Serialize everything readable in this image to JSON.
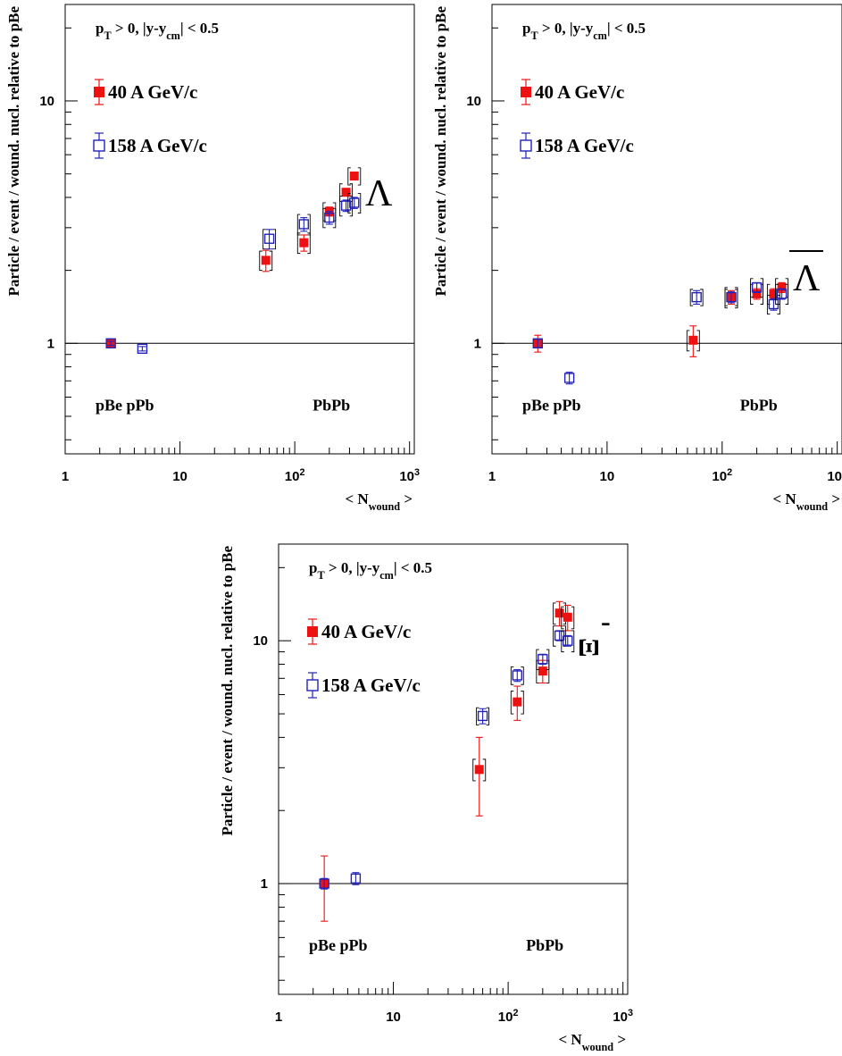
{
  "colors": {
    "series_40": "#ee1111",
    "series_158": "#2222bb",
    "axis": "#000000",
    "refline": "#000000"
  },
  "chart_data": [
    {
      "type": "scatter",
      "name": "lambda-panel",
      "xscale": "log",
      "yscale": "log",
      "xlim": [
        1,
        1100
      ],
      "ylim": [
        0.35,
        25
      ],
      "xticks": [
        {
          "v": 1,
          "label": "1"
        },
        {
          "v": 10,
          "label": "10"
        },
        {
          "v": 100,
          "base": "10",
          "exp": "2"
        },
        {
          "v": 1000,
          "base": "10",
          "exp": "3"
        }
      ],
      "yticks": [
        {
          "v": 1,
          "label": "1"
        },
        {
          "v": 10,
          "label": "10"
        }
      ],
      "xlabel": {
        "main": "< N",
        "sub": "wound",
        "end": " >"
      },
      "ylabel": "Particle / event / wound. nucl. relative to pBe",
      "condition": {
        "a": "p",
        "a_sub": "T",
        "b": " > 0,   |y-y",
        "b_sub": "cm",
        "c": "| < 0.5"
      },
      "particle": "Λ",
      "particle_bar": false,
      "system_labels": {
        "small": "pBe pPb",
        "large": "PbPb"
      },
      "reference_line": 1,
      "series": [
        {
          "name": "40 A GeV/c",
          "marker": "filled-square",
          "color": "#ee1111",
          "points": [
            {
              "x": 2.5,
              "y": 1.0,
              "err": 0.02,
              "sys": 0
            },
            {
              "x": 56,
              "y": 2.2,
              "err": 0.22,
              "sys": 0.2
            },
            {
              "x": 120,
              "y": 2.6,
              "err": 0.2,
              "sys": 0.25
            },
            {
              "x": 200,
              "y": 3.5,
              "err": 0.15,
              "sys": 0.3
            },
            {
              "x": 280,
              "y": 4.2,
              "err": 0.15,
              "sys": 0.35
            },
            {
              "x": 330,
              "y": 4.9,
              "err": 0.15,
              "sys": 0.4
            }
          ]
        },
        {
          "name": "158 A GeV/c",
          "marker": "open-square",
          "color": "#2222bb",
          "points": [
            {
              "x": 2.5,
              "y": 1.0,
              "err": 0.02,
              "sys": 0
            },
            {
              "x": 4.7,
              "y": 0.95,
              "err": 0.02,
              "sys": 0
            },
            {
              "x": 60,
              "y": 2.7,
              "err": 0.25,
              "sys": 0.25
            },
            {
              "x": 120,
              "y": 3.1,
              "err": 0.2,
              "sys": 0.3
            },
            {
              "x": 200,
              "y": 3.3,
              "err": 0.2,
              "sys": 0.3
            },
            {
              "x": 280,
              "y": 3.7,
              "err": 0.2,
              "sys": 0.35
            },
            {
              "x": 330,
              "y": 3.8,
              "err": 0.2,
              "sys": 0.35
            }
          ]
        }
      ],
      "legend": [
        {
          "label": "40 A GeV/c",
          "marker": "filled-square",
          "color": "#ee1111"
        },
        {
          "label": "158 A GeV/c",
          "marker": "open-square",
          "color": "#2222bb"
        }
      ]
    },
    {
      "type": "scatter",
      "name": "antilambda-panel",
      "xscale": "log",
      "yscale": "log",
      "xlim": [
        1,
        1100
      ],
      "ylim": [
        0.35,
        25
      ],
      "xticks": [
        {
          "v": 1,
          "label": "1"
        },
        {
          "v": 10,
          "label": "10"
        },
        {
          "v": 100,
          "base": "10",
          "exp": "2"
        },
        {
          "v": 1000,
          "base": "10",
          "exp": "3"
        }
      ],
      "yticks": [
        {
          "v": 1,
          "label": "1"
        },
        {
          "v": 10,
          "label": "10"
        }
      ],
      "xlabel": {
        "main": "< N",
        "sub": "wound",
        "end": " >"
      },
      "ylabel": "Particle / event / wound. nucl. relative to pBe",
      "condition": {
        "a": "p",
        "a_sub": "T",
        "b": " > 0,   |y-y",
        "b_sub": "cm",
        "c": "| < 0.5"
      },
      "particle": "Λ",
      "particle_bar": true,
      "system_labels": {
        "small": "pBe pPb",
        "large": "PbPb"
      },
      "reference_line": 1,
      "series": [
        {
          "name": "40 A GeV/c",
          "marker": "filled-square",
          "color": "#ee1111",
          "points": [
            {
              "x": 2.5,
              "y": 1.0,
              "err": 0.08,
              "sys": 0
            },
            {
              "x": 56,
              "y": 1.03,
              "err": 0.15,
              "sys": 0.1
            },
            {
              "x": 120,
              "y": 1.55,
              "err": 0.1,
              "sys": 0.15
            },
            {
              "x": 200,
              "y": 1.6,
              "err": 0.08,
              "sys": 0.15
            },
            {
              "x": 280,
              "y": 1.6,
              "err": 0.08,
              "sys": 0.15
            },
            {
              "x": 330,
              "y": 1.7,
              "err": 0.08,
              "sys": 0.15
            }
          ]
        },
        {
          "name": "158 A GeV/c",
          "marker": "open-square",
          "color": "#2222bb",
          "points": [
            {
              "x": 2.5,
              "y": 1.0,
              "err": 0.04,
              "sys": 0
            },
            {
              "x": 4.7,
              "y": 0.72,
              "err": 0.04,
              "sys": 0
            },
            {
              "x": 60,
              "y": 1.55,
              "err": 0.1,
              "sys": 0.12
            },
            {
              "x": 120,
              "y": 1.55,
              "err": 0.08,
              "sys": 0.12
            },
            {
              "x": 200,
              "y": 1.7,
              "err": 0.08,
              "sys": 0.15
            },
            {
              "x": 280,
              "y": 1.45,
              "err": 0.08,
              "sys": 0.13
            },
            {
              "x": 330,
              "y": 1.6,
              "err": 0.08,
              "sys": 0.15
            }
          ]
        }
      ],
      "legend": [
        {
          "label": "40 A GeV/c",
          "marker": "filled-square",
          "color": "#ee1111"
        },
        {
          "label": "158 A GeV/c",
          "marker": "open-square",
          "color": "#2222bb"
        }
      ]
    },
    {
      "type": "scatter",
      "name": "xi-panel",
      "xscale": "log",
      "yscale": "log",
      "xlim": [
        1,
        1100
      ],
      "ylim": [
        0.35,
        25
      ],
      "xticks": [
        {
          "v": 1,
          "label": "1"
        },
        {
          "v": 10,
          "label": "10"
        },
        {
          "v": 100,
          "base": "10",
          "exp": "2"
        },
        {
          "v": 1000,
          "base": "10",
          "exp": "3"
        }
      ],
      "yticks": [
        {
          "v": 1,
          "label": "1"
        },
        {
          "v": 10,
          "label": "10"
        }
      ],
      "xlabel": {
        "main": "< N",
        "sub": "wound",
        "end": " >"
      },
      "ylabel": "Particle / event / wound. nucl. relative to pBe",
      "condition": {
        "a": "p",
        "a_sub": "T",
        "b": " > 0,   |y-y",
        "b_sub": "cm",
        "c": "| < 0.5"
      },
      "particle": "Ξ",
      "particle_sup": "-",
      "particle_bar": false,
      "system_labels": {
        "small": "pBe pPb",
        "large": "PbPb"
      },
      "reference_line": 1,
      "series": [
        {
          "name": "40 A GeV/c",
          "marker": "filled-square",
          "color": "#ee1111",
          "points": [
            {
              "x": 2.5,
              "y": 1.0,
              "err": 0.3,
              "sys": 0
            },
            {
              "x": 56,
              "y": 2.95,
              "err": 1.05,
              "sys": 0.3
            },
            {
              "x": 120,
              "y": 5.6,
              "err": 0.9,
              "sys": 0.6
            },
            {
              "x": 200,
              "y": 7.5,
              "err": 0.8,
              "sys": 0.8
            },
            {
              "x": 280,
              "y": 13.0,
              "err": 1.5,
              "sys": 1.3
            },
            {
              "x": 330,
              "y": 12.5,
              "err": 1.5,
              "sys": 1.3
            }
          ]
        },
        {
          "name": "158 A GeV/c",
          "marker": "open-square",
          "color": "#2222bb",
          "points": [
            {
              "x": 2.5,
              "y": 1.0,
              "err": 0.05,
              "sys": 0
            },
            {
              "x": 4.7,
              "y": 1.05,
              "err": 0.06,
              "sys": 0
            },
            {
              "x": 60,
              "y": 4.9,
              "err": 0.35,
              "sys": 0.4
            },
            {
              "x": 120,
              "y": 7.2,
              "err": 0.4,
              "sys": 0.6
            },
            {
              "x": 200,
              "y": 8.4,
              "err": 0.4,
              "sys": 0.8
            },
            {
              "x": 280,
              "y": 10.5,
              "err": 0.5,
              "sys": 1.0
            },
            {
              "x": 330,
              "y": 10.0,
              "err": 0.5,
              "sys": 1.0
            }
          ]
        }
      ],
      "legend": [
        {
          "label": "40 A GeV/c",
          "marker": "filled-square",
          "color": "#ee1111"
        },
        {
          "label": "158 A GeV/c",
          "marker": "open-square",
          "color": "#2222bb"
        }
      ]
    }
  ]
}
